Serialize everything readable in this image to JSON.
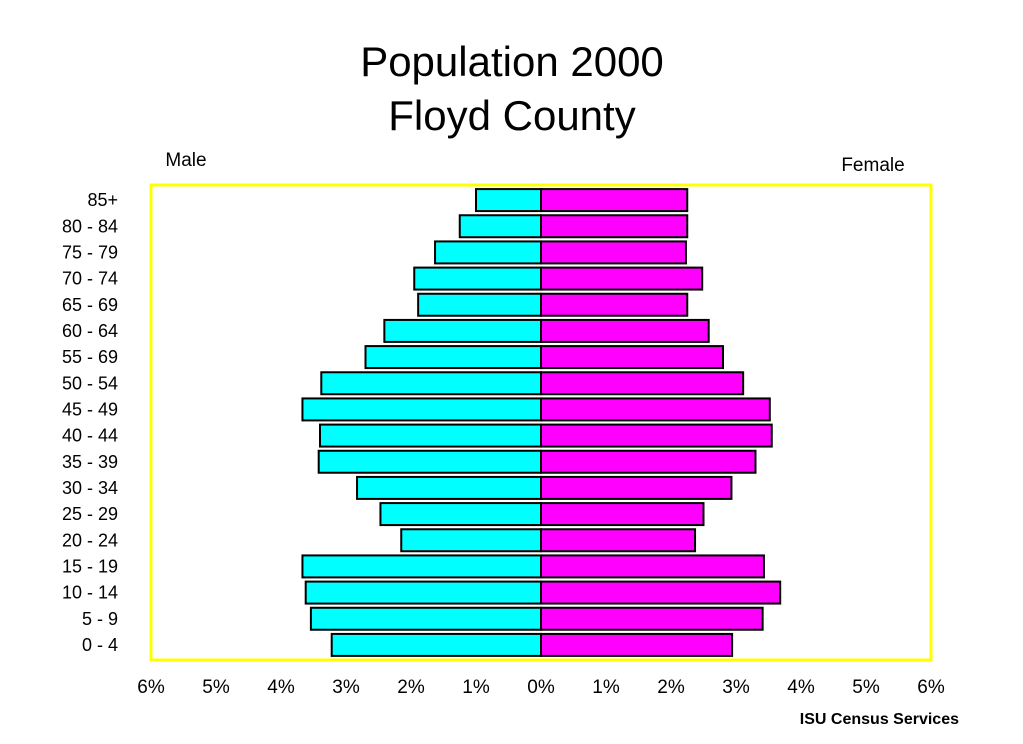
{
  "chart_data": {
    "type": "bar",
    "orientation": "horizontal-population-pyramid",
    "title_lines": [
      "Population 2000",
      "Floyd County"
    ],
    "left_label": "Male",
    "right_label": "Female",
    "categories": [
      "85+",
      "80 - 84",
      "75 - 79",
      "70 - 74",
      "65 - 69",
      "60 - 64",
      "55 - 69",
      "50 - 54",
      "45 - 49",
      "40 - 44",
      "35 - 39",
      "30 - 34",
      "25 - 29",
      "20 - 24",
      "15 - 19",
      "10 - 14",
      "5 - 9",
      "0 - 4"
    ],
    "series": [
      {
        "name": "Male",
        "color": "#00ffff",
        "values": [
          1.0,
          1.25,
          1.63,
          1.95,
          1.89,
          2.41,
          2.7,
          3.38,
          3.67,
          3.4,
          3.42,
          2.83,
          2.47,
          2.15,
          3.67,
          3.62,
          3.54,
          3.22
        ]
      },
      {
        "name": "Female",
        "color": "#ff00ff",
        "values": [
          2.25,
          2.25,
          2.23,
          2.48,
          2.25,
          2.58,
          2.8,
          3.11,
          3.52,
          3.55,
          3.3,
          2.93,
          2.5,
          2.37,
          3.43,
          3.68,
          3.41,
          2.94
        ]
      }
    ],
    "xlim": [
      -6,
      6
    ],
    "x_ticks": [
      "6%",
      "5%",
      "4%",
      "3%",
      "2%",
      "1%",
      "0%",
      "1%",
      "2%",
      "3%",
      "4%",
      "5%",
      "6%"
    ],
    "frame_color": "#ffff00",
    "grid": false,
    "credit": "ISU Census Services"
  }
}
